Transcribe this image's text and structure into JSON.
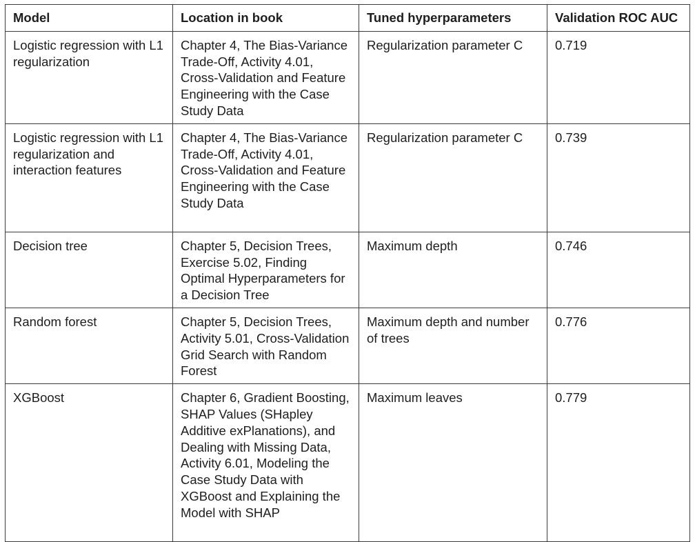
{
  "table": {
    "headers": [
      "Model",
      "Location in book",
      "Tuned hyperparameters",
      "Validation ROC AUC"
    ],
    "rows": [
      {
        "model": "Logistic regression with L1 regularization",
        "location": "Chapter 4, The Bias-Variance Trade-Off, Activity 4.01, Cross-Validation and Feature Engineering with the Case Study Data",
        "hyperparameters": "Regularization parameter C",
        "roc_auc": "0.719"
      },
      {
        "model": "Logistic regression with L1 regularization and interaction features",
        "location": "Chapter 4, The Bias-Variance Trade-Off, Activity 4.01, Cross-Validation and Feature Engineering with the Case Study Data",
        "hyperparameters": "Regularization parameter C",
        "roc_auc": "0.739"
      },
      {
        "model": "Decision tree",
        "location": "Chapter 5, Decision Trees, Exercise 5.02, Finding Optimal Hyperparameters for a Decision Tree",
        "hyperparameters": "Maximum depth",
        "roc_auc": "0.746"
      },
      {
        "model": "Random forest",
        "location": "Chapter 5, Decision Trees, Activity 5.01, Cross-Validation Grid Search with Random Forest",
        "hyperparameters": "Maximum depth and number of trees",
        "roc_auc": "0.776"
      },
      {
        "model": "XGBoost",
        "location": "Chapter 6, Gradient Boosting, SHAP Values (SHapley Additive exPlanations), and Dealing with Missing Data, Activity 6.01, Modeling the Case Study Data with XGBoost and Explaining the Model with SHAP",
        "hyperparameters": "Maximum leaves",
        "roc_auc": "0.779"
      }
    ]
  }
}
